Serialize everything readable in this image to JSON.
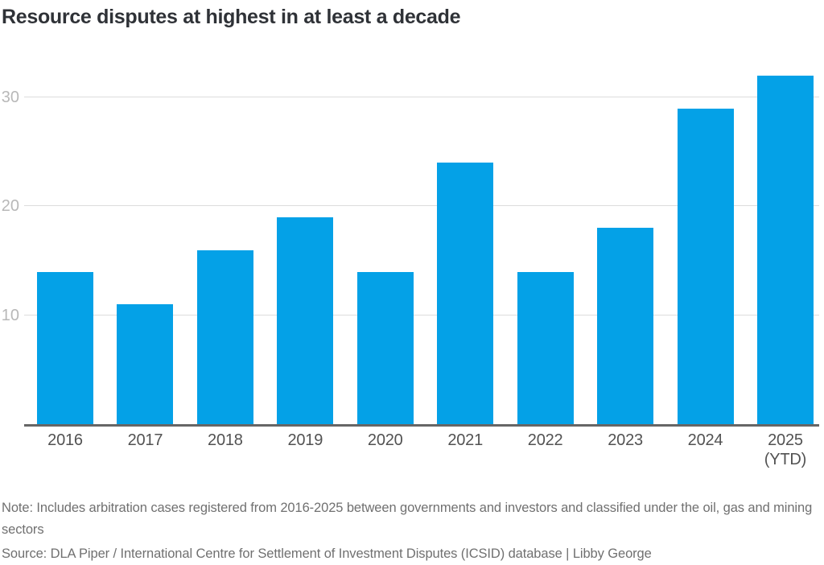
{
  "header": {
    "title": "Resource disputes at highest in at least a decade"
  },
  "chart_data": {
    "type": "bar",
    "title": "Resource disputes at highest in at least a decade",
    "categories": [
      "2016",
      "2017",
      "2018",
      "2019",
      "2020",
      "2021",
      "2022",
      "2023",
      "2024",
      "2025"
    ],
    "category_sublabels": [
      "",
      "",
      "",
      "",
      "",
      "",
      "",
      "",
      "",
      "(YTD)"
    ],
    "values": [
      14,
      11,
      16,
      19,
      14,
      24,
      14,
      18,
      29,
      32
    ],
    "xlabel": "",
    "ylabel": "",
    "ylim": [
      0,
      33
    ],
    "yticks": [
      10,
      20,
      30
    ],
    "grid": "horizontal-only",
    "legend": "none",
    "bar_color": "#04a1e7"
  },
  "footer": {
    "note": "Note: Includes arbitration cases registered from 2016-2025 between governments and investors and classified under the oil, gas and mining sectors",
    "source": "Source: DLA Piper / International Centre for Settlement of Investment Disputes (ICSID) database | Libby George"
  },
  "colors": {
    "bar": "#04a1e7",
    "title_text": "#2f3237",
    "y_tick_text": "#b8b8b8",
    "x_tick_text": "#525252",
    "gridline": "#dcdcdc",
    "baseline": "#666666",
    "footnote_text": "#707070",
    "background": "#ffffff"
  }
}
